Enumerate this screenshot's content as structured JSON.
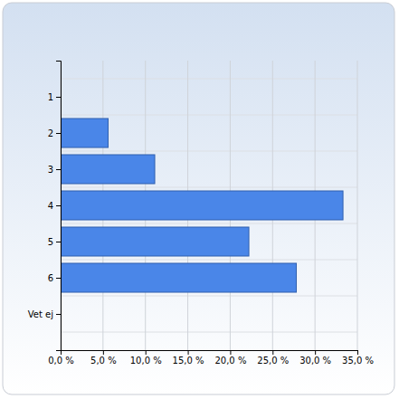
{
  "chart_data": {
    "type": "bar",
    "orientation": "horizontal",
    "categories": [
      "1",
      "2",
      "3",
      "4",
      "5",
      "6",
      "Vet ej"
    ],
    "values": [
      0,
      5.6,
      11.1,
      33.3,
      22.2,
      27.8,
      0
    ],
    "color": "#4a86e8",
    "xlim": [
      0,
      35
    ],
    "xticks": [
      {
        "value": 0,
        "label": "0,0 %"
      },
      {
        "value": 5,
        "label": "5,0 %"
      },
      {
        "value": 10,
        "label": "10,0 %"
      },
      {
        "value": 15,
        "label": "15,0 %"
      },
      {
        "value": 20,
        "label": "20,0 %"
      },
      {
        "value": 25,
        "label": "25,0 %"
      },
      {
        "value": 30,
        "label": "30,0 %"
      },
      {
        "value": 35,
        "label": "35,0 %"
      }
    ],
    "grid": true
  }
}
